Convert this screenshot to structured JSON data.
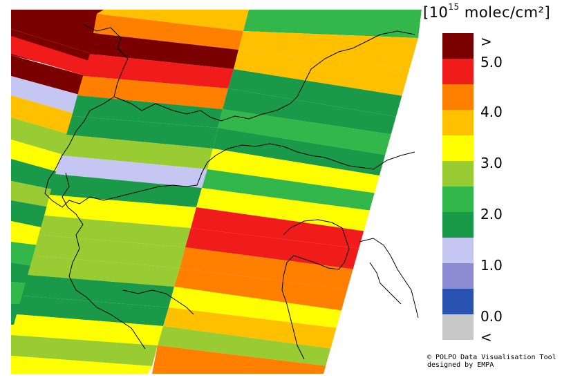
{
  "legend": {
    "title_prefix": "[10",
    "title_exponent": "15",
    "title_suffix": " molec/cm²]",
    "colors": [
      "#7a0000",
      "#f01c1c",
      "#ff8000",
      "#ffc000",
      "#ffff00",
      "#99cc33",
      "#33b64a",
      "#1a9a48",
      "#c6c6f2",
      "#8c8cd2",
      "#2a52b0",
      "#c8c8c8"
    ],
    "labels": [
      ">",
      "5.0",
      "4.0",
      "3.0",
      "2.0",
      "1.0",
      "0.0",
      "<"
    ]
  },
  "credit": {
    "line1": "© POLPO Data Visualisation Tool",
    "line2": "designed by EMPA"
  }
}
